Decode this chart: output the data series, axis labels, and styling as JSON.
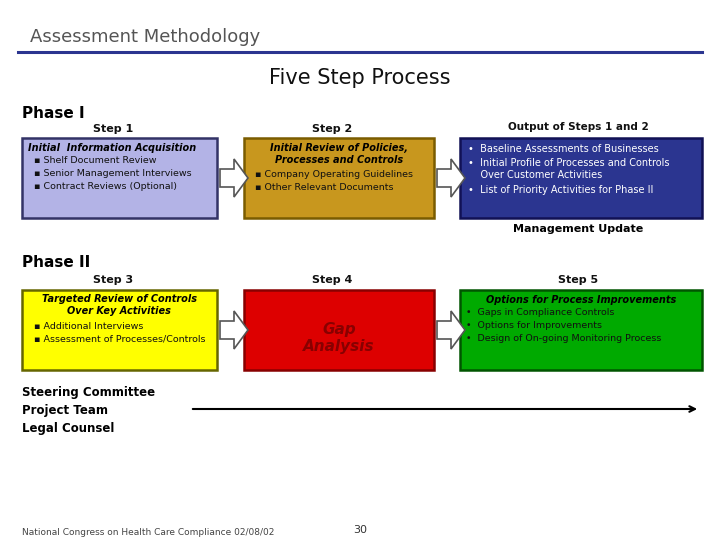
{
  "title_top": "Assessment Methodology",
  "title_main": "Five Step Process",
  "bg_color": "#ffffff",
  "phase1_label": "Phase I",
  "phase2_label": "Phase II",
  "step1_label": "Step 1",
  "step2_label": "Step 2",
  "step3_label": "Step 3",
  "step4_label": "Step 4",
  "step5_label": "Step 5",
  "output12_label": "Output of Steps 1 and 2",
  "box1_color": "#b3b3e6",
  "box1_border": "#333366",
  "box1_title": "Initial  Information Acquisition",
  "box1_bullets": [
    "  ▪ Shelf Document Review",
    "  ▪ Senior Management Interviews",
    "  ▪ Contract Reviews (Optional)"
  ],
  "box2_color": "#c8971e",
  "box2_border": "#7a5c00",
  "box2_title": "Initial Review of Policies,\nProcesses and Controls",
  "box2_bullets": [
    "  ▪ Company Operating Guidelines",
    "  ▪ Other Relevant Documents"
  ],
  "box3_color": "#2b3590",
  "box3_border": "#111155",
  "box3_bullets": [
    "•  Baseline Assessments of Businesses",
    "•  Initial Profile of Processes and Controls\n    Over Customer Activities",
    "•  List of Priority Activities for Phase II"
  ],
  "box4_color": "#ffff00",
  "box4_border": "#666600",
  "box4_title": "Targeted Review of Controls\nOver Key Activities",
  "box4_bullets": [
    "  ▪ Additional Interviews",
    "  ▪ Assessment of Processes/Controls"
  ],
  "box5_color": "#dd0000",
  "box5_border": "#880000",
  "box5_text": "Gap\nAnalysis",
  "box6_color": "#00aa00",
  "box6_border": "#005500",
  "box6_title": "Options for Process Improvements",
  "box6_bullets": [
    "•  Gaps in Compliance Controls",
    "•  Options for Improvements",
    "•  Design of On-going Monitoring Process"
  ],
  "mgmt_update": "Management Update",
  "steering": "Steering Committee",
  "project_team": "Project Team",
  "legal_counsel": "Legal Counsel",
  "footer_left": "National Congress on Health Care Compliance 02/08/02",
  "footer_center": "30",
  "line_color": "#2b3590",
  "arrow_outline": "#555555"
}
